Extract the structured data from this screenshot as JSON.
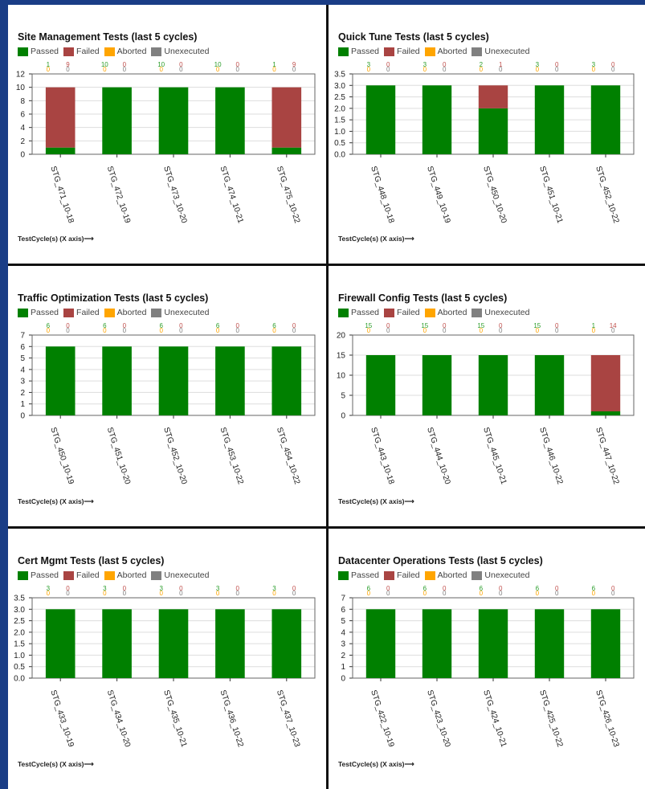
{
  "legend": [
    {
      "label": "Passed",
      "color": "#008000"
    },
    {
      "label": "Failed",
      "color": "#a94442"
    },
    {
      "label": "Aborted",
      "color": "#ffa500"
    },
    {
      "label": "Unexecuted",
      "color": "#808080"
    }
  ],
  "x_caption": "TestCycle(s) (X axis)⟶",
  "chart_data": [
    {
      "type": "bar",
      "title": "Site Management Tests (last 5 cycles)",
      "stacked": true,
      "categories": [
        "STG_471_10-18",
        "STG_472_10-19",
        "STG_473_10-20",
        "STG_474_10-21",
        "STG_475_10-22"
      ],
      "ylim": [
        0,
        12
      ],
      "yticks": [
        "0",
        "2",
        "4",
        "6",
        "8",
        "10",
        "12"
      ],
      "series": [
        {
          "name": "Passed",
          "values": [
            1,
            10,
            10,
            10,
            1
          ]
        },
        {
          "name": "Failed",
          "values": [
            9,
            0,
            0,
            0,
            9
          ]
        },
        {
          "name": "Aborted",
          "values": [
            0,
            0,
            0,
            0,
            0
          ]
        },
        {
          "name": "Unexecuted",
          "values": [
            0,
            0,
            0,
            0,
            0
          ]
        }
      ]
    },
    {
      "type": "bar",
      "title": "Quick Tune Tests (last 5 cycles)",
      "stacked": true,
      "categories": [
        "STG_448_10-18",
        "STG_449_10-19",
        "STG_450_10-20",
        "STG_451_10-21",
        "STG_452_10-22"
      ],
      "ylim": [
        0,
        3.5
      ],
      "yticks": [
        "0.0",
        "0.5",
        "1.0",
        "1.5",
        "2.0",
        "2.5",
        "3.0",
        "3.5"
      ],
      "series": [
        {
          "name": "Passed",
          "values": [
            3,
            3,
            2,
            3,
            3
          ]
        },
        {
          "name": "Failed",
          "values": [
            0,
            0,
            1,
            0,
            0
          ]
        },
        {
          "name": "Aborted",
          "values": [
            0,
            0,
            0,
            0,
            0
          ]
        },
        {
          "name": "Unexecuted",
          "values": [
            0,
            0,
            0,
            0,
            0
          ]
        }
      ]
    },
    {
      "type": "bar",
      "title": "Traffic Optimization Tests (last 5 cycles)",
      "stacked": true,
      "categories": [
        "STG_450_10-19",
        "STG_451_10-20",
        "STG_452_10-20",
        "STG_453_10-22",
        "STG_454_10-22"
      ],
      "ylim": [
        0,
        7
      ],
      "yticks": [
        "0",
        "1",
        "2",
        "3",
        "4",
        "5",
        "6",
        "7"
      ],
      "series": [
        {
          "name": "Passed",
          "values": [
            6,
            6,
            6,
            6,
            6
          ]
        },
        {
          "name": "Failed",
          "values": [
            0,
            0,
            0,
            0,
            0
          ]
        },
        {
          "name": "Aborted",
          "values": [
            0,
            0,
            0,
            0,
            0
          ]
        },
        {
          "name": "Unexecuted",
          "values": [
            0,
            0,
            0,
            0,
            0
          ]
        }
      ]
    },
    {
      "type": "bar",
      "title": "Firewall Config Tests (last 5 cycles)",
      "stacked": true,
      "categories": [
        "STG_443_10-18",
        "STG_444_10-20",
        "STG_445_10-21",
        "STG_446_10-22",
        "STG_447_10-22"
      ],
      "ylim": [
        0,
        20
      ],
      "yticks": [
        "0",
        "5",
        "10",
        "15",
        "20"
      ],
      "series": [
        {
          "name": "Passed",
          "values": [
            15,
            15,
            15,
            15,
            1
          ]
        },
        {
          "name": "Failed",
          "values": [
            0,
            0,
            0,
            0,
            14
          ]
        },
        {
          "name": "Aborted",
          "values": [
            0,
            0,
            0,
            0,
            0
          ]
        },
        {
          "name": "Unexecuted",
          "values": [
            0,
            0,
            0,
            0,
            0
          ]
        }
      ]
    },
    {
      "type": "bar",
      "title": "Cert Mgmt Tests (last 5 cycles)",
      "stacked": true,
      "categories": [
        "STG_433_10-19",
        "STG_434_10-20",
        "STG_435_10-21",
        "STG_436_10-22",
        "STG_437_10-23"
      ],
      "ylim": [
        0,
        3.5
      ],
      "yticks": [
        "0.0",
        "0.5",
        "1.0",
        "1.5",
        "2.0",
        "2.5",
        "3.0",
        "3.5"
      ],
      "series": [
        {
          "name": "Passed",
          "values": [
            3,
            3,
            3,
            3,
            3
          ]
        },
        {
          "name": "Failed",
          "values": [
            0,
            0,
            0,
            0,
            0
          ]
        },
        {
          "name": "Aborted",
          "values": [
            0,
            0,
            0,
            0,
            0
          ]
        },
        {
          "name": "Unexecuted",
          "values": [
            0,
            0,
            0,
            0,
            0
          ]
        }
      ]
    },
    {
      "type": "bar",
      "title": "Datacenter Operations Tests (last 5 cycles)",
      "stacked": true,
      "categories": [
        "STG_422_10-19",
        "STG_423_10-20",
        "STG_424_10-21",
        "STG_425_10-22",
        "STG_426_10-23"
      ],
      "ylim": [
        0,
        7
      ],
      "yticks": [
        "0",
        "1",
        "2",
        "3",
        "4",
        "5",
        "6",
        "7"
      ],
      "series": [
        {
          "name": "Passed",
          "values": [
            6,
            6,
            6,
            6,
            6
          ]
        },
        {
          "name": "Failed",
          "values": [
            0,
            0,
            0,
            0,
            0
          ]
        },
        {
          "name": "Aborted",
          "values": [
            0,
            0,
            0,
            0,
            0
          ]
        },
        {
          "name": "Unexecuted",
          "values": [
            0,
            0,
            0,
            0,
            0
          ]
        }
      ]
    }
  ]
}
